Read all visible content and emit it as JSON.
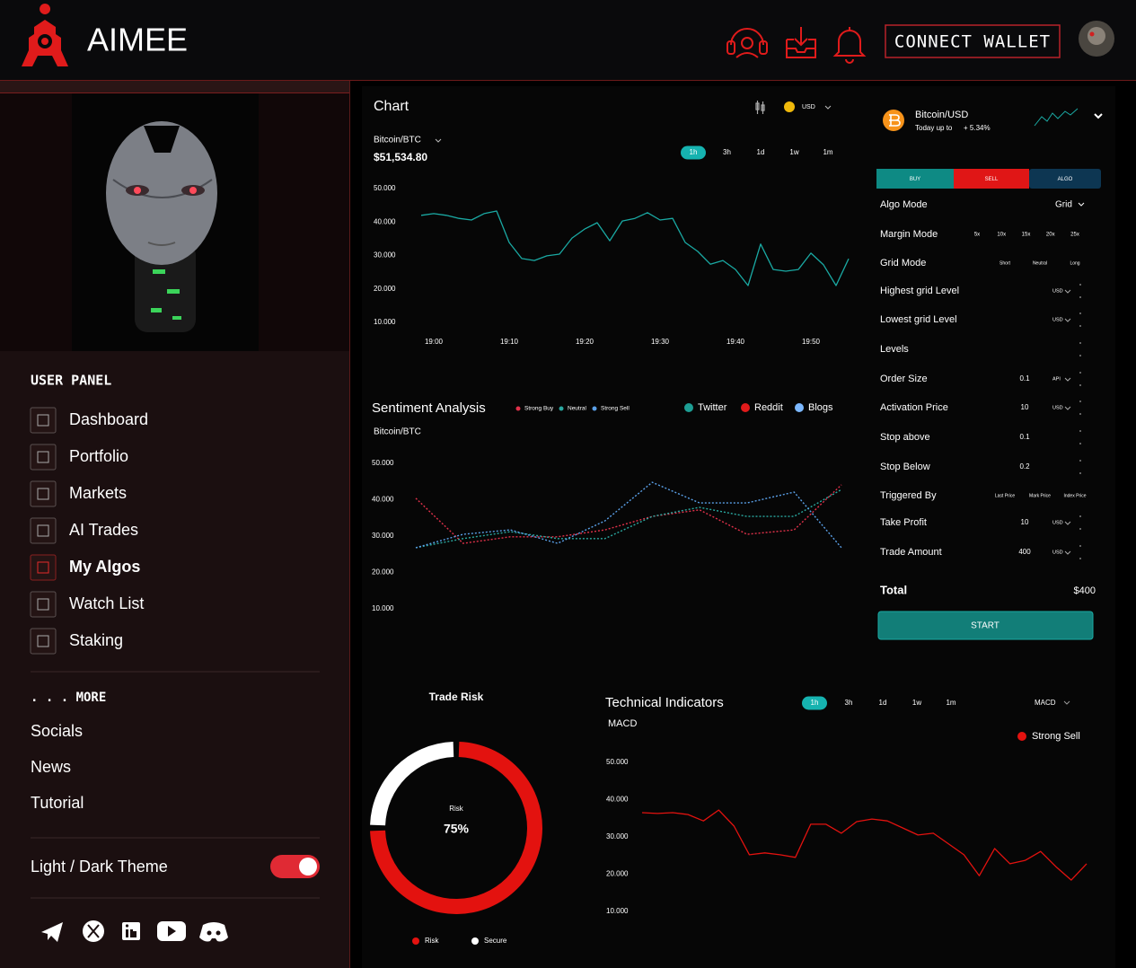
{
  "header": {
    "brand": "AIMEE",
    "connect_button": "CONNECT WALLET"
  },
  "sidebar": {
    "panel_title": "USER PANEL",
    "menu": [
      {
        "label": "Dashboard",
        "active": false
      },
      {
        "label": "Portfolio",
        "active": false
      },
      {
        "label": "Markets",
        "active": false
      },
      {
        "label": "AI Trades",
        "active": false
      },
      {
        "label": "My Algos",
        "active": true
      },
      {
        "label": "Watch List",
        "active": false
      },
      {
        "label": "Staking",
        "active": false
      }
    ],
    "more_title": ". . . MORE",
    "links": [
      "Socials",
      "News",
      "Tutorial"
    ],
    "theme_label": "Light / Dark Theme",
    "theme_on": true
  },
  "chart_data": [
    {
      "type": "line",
      "title": "Chart",
      "currency": "USD",
      "subtitle": "Bitcoin/BTC",
      "price": "$51,534.80",
      "timeframes": [
        {
          "label": "1h",
          "active": true
        },
        {
          "label": "3h",
          "active": false
        },
        {
          "label": "1d",
          "active": false
        },
        {
          "label": "1w",
          "active": false
        },
        {
          "label": "1m",
          "active": false
        }
      ],
      "categories": [
        null,
        "19:00",
        null,
        null,
        null,
        null,
        null,
        "19:10",
        null,
        null,
        null,
        null,
        null,
        "19:20",
        null,
        null,
        null,
        null,
        null,
        "19:30",
        null,
        null,
        null,
        null,
        null,
        "19:40",
        null,
        null,
        null,
        null,
        null,
        "19:50",
        null,
        null,
        null
      ],
      "series": [
        {
          "name": "Bitcoin/BTC",
          "color": "#1aa9a3",
          "values": [
            42000,
            42500,
            42000,
            41100,
            40600,
            42500,
            43300,
            33900,
            29100,
            28500,
            29900,
            30400,
            35200,
            37900,
            39800,
            34400,
            40300,
            41100,
            42800,
            40600,
            41100,
            33900,
            31200,
            27400,
            28500,
            25800,
            21000,
            33400,
            25800,
            25300,
            25800,
            30700,
            27200,
            21000,
            29000
          ]
        }
      ],
      "ylim": [
        10000,
        50000
      ],
      "yticks": [
        {
          "value": 50000,
          "label": "50.000"
        },
        {
          "value": 40000,
          "label": "40.000"
        },
        {
          "value": 30000,
          "label": "30.000"
        },
        {
          "value": 20000,
          "label": "20.000"
        },
        {
          "value": 10000,
          "label": "10.000"
        }
      ],
      "grid": false,
      "dashed": false
    },
    {
      "type": "line",
      "title": "Sentiment Analysis",
      "subtitle": "Bitcoin/BTC",
      "sources": [
        {
          "name": "Twitter",
          "color": "#1d9e94"
        },
        {
          "name": "Reddit",
          "color": "#e01b1b"
        },
        {
          "name": "Blogs",
          "color": "#7cb8ff"
        }
      ],
      "series": [
        {
          "name": "Strong Buy",
          "color": "#e0314a",
          "values": [
            40400,
            28000,
            29800,
            29800,
            31700,
            35400,
            37200,
            30500,
            31700,
            44100
          ]
        },
        {
          "name": "Neutral",
          "color": "#2aa8a0",
          "values": [
            26800,
            29300,
            31200,
            29300,
            29300,
            35400,
            37900,
            35400,
            35400,
            42800
          ]
        },
        {
          "name": "Strong Sell",
          "color": "#5aa0e8",
          "values": [
            26800,
            30500,
            31700,
            28000,
            34200,
            44800,
            39100,
            39100,
            42100,
            26800
          ]
        }
      ],
      "ylim": [
        10000,
        50000
      ],
      "yticks": [
        {
          "value": 50000,
          "label": "50.000"
        },
        {
          "value": 40000,
          "label": "40.000"
        },
        {
          "value": 30000,
          "label": "30.000"
        },
        {
          "value": 20000,
          "label": "20.000"
        },
        {
          "value": 10000,
          "label": "10.000"
        }
      ],
      "grid": false,
      "dashed": true
    },
    {
      "type": "pie",
      "donut": true,
      "title": "Trade Risk",
      "categories": [
        "Risk",
        "Secure"
      ],
      "values": [
        75,
        25
      ],
      "colors": [
        "#e3120f",
        "#ffffff"
      ],
      "center_label": "Risk",
      "center_value": "75%"
    },
    {
      "type": "line",
      "title": "Technical Indicators",
      "subtitle": "MACD",
      "indicator": "MACD",
      "timeframes": [
        {
          "label": "1h",
          "active": true
        },
        {
          "label": "3h",
          "active": false
        },
        {
          "label": "1d",
          "active": false
        },
        {
          "label": "1w",
          "active": false
        },
        {
          "label": "1m",
          "active": false
        }
      ],
      "series": [
        {
          "name": "Strong Sell",
          "color": "#e3120f",
          "values": [
            36500,
            36300,
            36500,
            36000,
            34300,
            37200,
            32900,
            25200,
            25700,
            25200,
            24500,
            33400,
            33400,
            31000,
            34100,
            34800,
            34300,
            32400,
            30500,
            31000,
            28100,
            25200,
            19600,
            26900,
            22800,
            23700,
            26100,
            22000,
            18400,
            22800
          ]
        }
      ],
      "ylim": [
        10000,
        50000
      ],
      "yticks": [
        {
          "value": 50000,
          "label": "50.000"
        },
        {
          "value": 40000,
          "label": "40.000"
        },
        {
          "value": 30000,
          "label": "30.000"
        },
        {
          "value": 20000,
          "label": "20.000"
        },
        {
          "value": 10000,
          "label": "10.000"
        }
      ],
      "grid": false,
      "dashed": false
    }
  ],
  "trade_panel": {
    "pair": "Bitcoin/USD",
    "change_label": "Today up to",
    "change": "+ 5.34%",
    "tabs": [
      "BUY",
      "SELL",
      "ALGO"
    ],
    "rows": [
      {
        "label": "Algo Mode",
        "select": "Grid"
      },
      {
        "label": "Margin Mode",
        "options": [
          "5x",
          "10x",
          "15x",
          "20x",
          "25x"
        ]
      },
      {
        "label": "Grid Mode",
        "options": [
          "Short",
          "Neutral",
          "Long"
        ]
      },
      {
        "label": "Highest grid Level",
        "unit": "USD"
      },
      {
        "label": "Lowest grid Level",
        "unit": "USD"
      },
      {
        "label": "Levels"
      },
      {
        "label": "Order Size",
        "value": "0.1",
        "unit": "API"
      },
      {
        "label": "Activation Price",
        "value": "10",
        "unit": "USD"
      },
      {
        "label": "Stop above",
        "value": "0.1"
      },
      {
        "label": "Stop Below",
        "value": "0.2"
      },
      {
        "label": "Triggered By",
        "options": [
          "Last Price",
          "Mark Price",
          "Index Price"
        ]
      },
      {
        "label": "Take Profit",
        "value": "10",
        "unit": "USD"
      },
      {
        "label": "Trade Amount",
        "value": "400",
        "unit": "USD"
      }
    ],
    "total_label": "Total",
    "total": "$400",
    "start_button": "START"
  }
}
